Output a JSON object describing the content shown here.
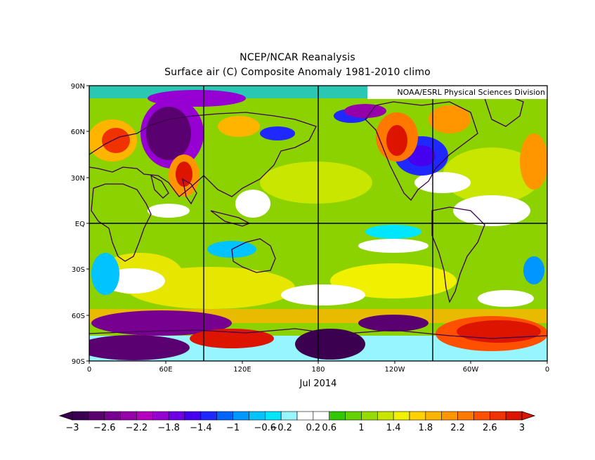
{
  "title": "NCEP/NCAR Reanalysis",
  "subtitle": "Surface air (C) Composite Anomaly 1981-2010 climo",
  "credit": "NOAA/ESRL Physical Sciences Division",
  "date_label": "Jul 2014",
  "lat_labels": [
    "90N",
    "60N",
    "30N",
    "EQ",
    "30S",
    "60S",
    "90S"
  ],
  "lon_labels": [
    "0",
    "60E",
    "120E",
    "180",
    "120W",
    "60W",
    "0"
  ],
  "colorbar": {
    "labels": [
      "−3",
      "−2.6",
      "−2.2",
      "−1.8",
      "−1.4",
      "−1",
      "−0.6",
      "−0.2",
      "0.2",
      "0.6",
      "1",
      "1.4",
      "1.8",
      "2.2",
      "2.6",
      "3"
    ],
    "colors": [
      "#3c0050",
      "#5a0070",
      "#780090",
      "#9600a8",
      "#b400be",
      "#9600d2",
      "#6e00e6",
      "#4600f0",
      "#1e28ff",
      "#0064ff",
      "#0096ff",
      "#00c3ff",
      "#00e6ff",
      "#96f5ff",
      "#ffffff",
      "#ffffff",
      "#32c800",
      "#64d200",
      "#96dc00",
      "#c8e600",
      "#f0f000",
      "#ffd200",
      "#ffb400",
      "#ff9600",
      "#ff7800",
      "#ff5000",
      "#f03200",
      "#dc1400"
    ],
    "under_color": "#3c0050",
    "over_color": "#dc1400"
  }
}
